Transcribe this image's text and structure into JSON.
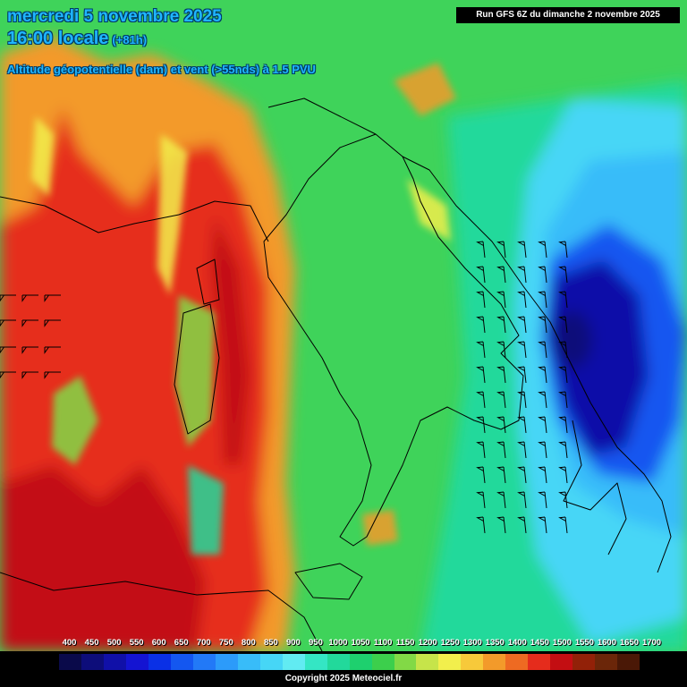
{
  "header": {
    "date_line": "mercredi 5 novembre 2025",
    "time_line": "16:00 locale",
    "lead_time": "(+81h)",
    "parameter_line": "Altitude géopotentielle (dam) et vent (>55nds) à 1.5 PVU",
    "run_banner": "Run GFS 6Z du dimanche 2 novembre 2025"
  },
  "legend": {
    "labels": [
      "400",
      "450",
      "500",
      "550",
      "600",
      "650",
      "700",
      "750",
      "800",
      "850",
      "900",
      "950",
      "1000",
      "1050",
      "1100",
      "1150",
      "1200",
      "1250",
      "1300",
      "1350",
      "1400",
      "1450",
      "1500",
      "1550",
      "1600",
      "1650",
      "1700"
    ],
    "colors": [
      "#000000",
      "#0a0a4a",
      "#0d0d7a",
      "#1010a8",
      "#1414d2",
      "#0a30e6",
      "#1457f0",
      "#2279f7",
      "#2c9bfa",
      "#38bcf9",
      "#46d6f6",
      "#61ebf2",
      "#34e6c4",
      "#22d99b",
      "#1ed06e",
      "#3ccf4c",
      "#82d946",
      "#c6e44a",
      "#f2ef4c",
      "#f7c93a",
      "#f39a2a",
      "#ee6a22",
      "#e52c1c",
      "#c30e12",
      "#922108",
      "#6b2609",
      "#4a1806"
    ]
  },
  "copyright": "Copyright 2025 Meteociel.fr",
  "map": {
    "background_color": "#3fd35a",
    "field_colors": {
      "west_warm": "#e62f1f",
      "west_hot": "#c30e12",
      "orange": "#f39a2a",
      "yellow": "#f2ef4c",
      "lime": "#82d946",
      "green": "#22d99b",
      "cyan": "#46d6f6",
      "light_blue": "#38bcf9",
      "blue": "#1457f0",
      "deep_blue": "#1010a8",
      "core": "#0d0d7a"
    }
  }
}
